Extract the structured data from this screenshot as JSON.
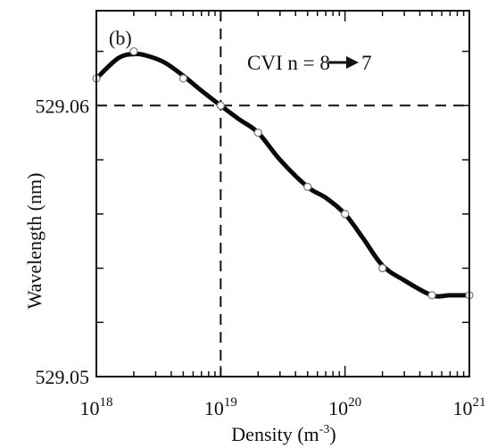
{
  "chart_data": {
    "type": "line",
    "panel_label": "(b)",
    "annotation": {
      "prefix": "CVI n = 8",
      "suffix": "7"
    },
    "xlabel": {
      "text": "Density (m",
      "sup": "-3",
      "close": ")"
    },
    "ylabel": "Wavelength (nm)",
    "x_scale": "log",
    "xlim": [
      1e+18,
      1e+21
    ],
    "ylim": [
      529.05,
      529.0635
    ],
    "x_ticks": [
      {
        "base": "10",
        "exp": "18",
        "value": 1e+18
      },
      {
        "base": "10",
        "exp": "19",
        "value": 1e+19
      },
      {
        "base": "10",
        "exp": "20",
        "value": 1e+20
      },
      {
        "base": "10",
        "exp": "21",
        "value": 1e+21
      }
    ],
    "y_tick_labels": [
      {
        "label": "529.06",
        "value": 529.06
      },
      {
        "label": "529.05",
        "value": 529.05
      }
    ],
    "y_minor_ticks": [
      529.052,
      529.054,
      529.056,
      529.058,
      529.062
    ],
    "reference_lines": {
      "x": 1e+19,
      "y": 529.06
    },
    "series": [
      {
        "x": [
          1e+18,
          2e+18,
          5e+18,
          1e+19,
          2e+19,
          5e+19,
          1e+20,
          2e+20,
          5e+20,
          1e+21
        ],
        "y": [
          529.061,
          529.062,
          529.061,
          529.06,
          529.059,
          529.057,
          529.056,
          529.054,
          529.053,
          529.053
        ],
        "curve_x": [
          1e+18,
          1.5e+18,
          2e+18,
          2.5e+18,
          3.5e+18,
          5e+18,
          7e+18,
          1e+19,
          1.4e+19,
          2e+19,
          3e+19,
          5e+19,
          7e+19,
          1e+20,
          1.4e+20,
          2e+20,
          3e+20,
          5e+20,
          7e+20,
          1e+21
        ],
        "curve_y": [
          529.061,
          529.06175,
          529.0619,
          529.06185,
          529.0616,
          529.0611,
          529.06055,
          529.06,
          529.0595,
          529.059,
          529.058,
          529.057,
          529.0566,
          529.056,
          529.0551,
          529.0541,
          529.05355,
          529.053,
          529.053,
          529.053
        ]
      }
    ],
    "colors": {
      "curve": "#0a0a0a",
      "axes": "#111111",
      "marker_fill": "#ffffff",
      "marker_edge": "#777777"
    }
  }
}
